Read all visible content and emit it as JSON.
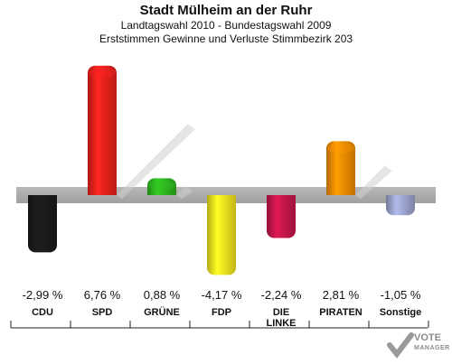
{
  "header": {
    "title": "Stadt Mülheim an der Ruhr",
    "subtitle1": "Landtagswahl 2010 - Bundestagswahl 2009",
    "subtitle2": "Erststimmen Gewinne und Verluste Stimmbezirk 203"
  },
  "chart_data": {
    "type": "bar",
    "categories": [
      "CDU",
      "SPD",
      "GRÜNE",
      "FDP",
      "DIE LINKE",
      "PIRATEN",
      "Sonstige"
    ],
    "category_lines": [
      [
        "CDU"
      ],
      [
        "SPD"
      ],
      [
        "GRÜNE"
      ],
      [
        "FDP"
      ],
      [
        "DIE",
        "LINKE"
      ],
      [
        "PIRATEN"
      ],
      [
        "Sonstige"
      ]
    ],
    "values": [
      -2.99,
      6.76,
      0.88,
      -4.17,
      -2.24,
      2.81,
      -1.05
    ],
    "value_labels": [
      "-2,99 %",
      "6,76 %",
      "0,88 %",
      "-4,17 %",
      "-2,24 %",
      "2,81 %",
      "-1,05 %"
    ],
    "colors": [
      "#1a1a1a",
      "#e8201c",
      "#2db21e",
      "#f2e21e",
      "#c4164a",
      "#f28a00",
      "#9aa3cc"
    ],
    "baseline": 0
  },
  "logo": {
    "line1": "VOTE",
    "line2": "MANAGER"
  }
}
